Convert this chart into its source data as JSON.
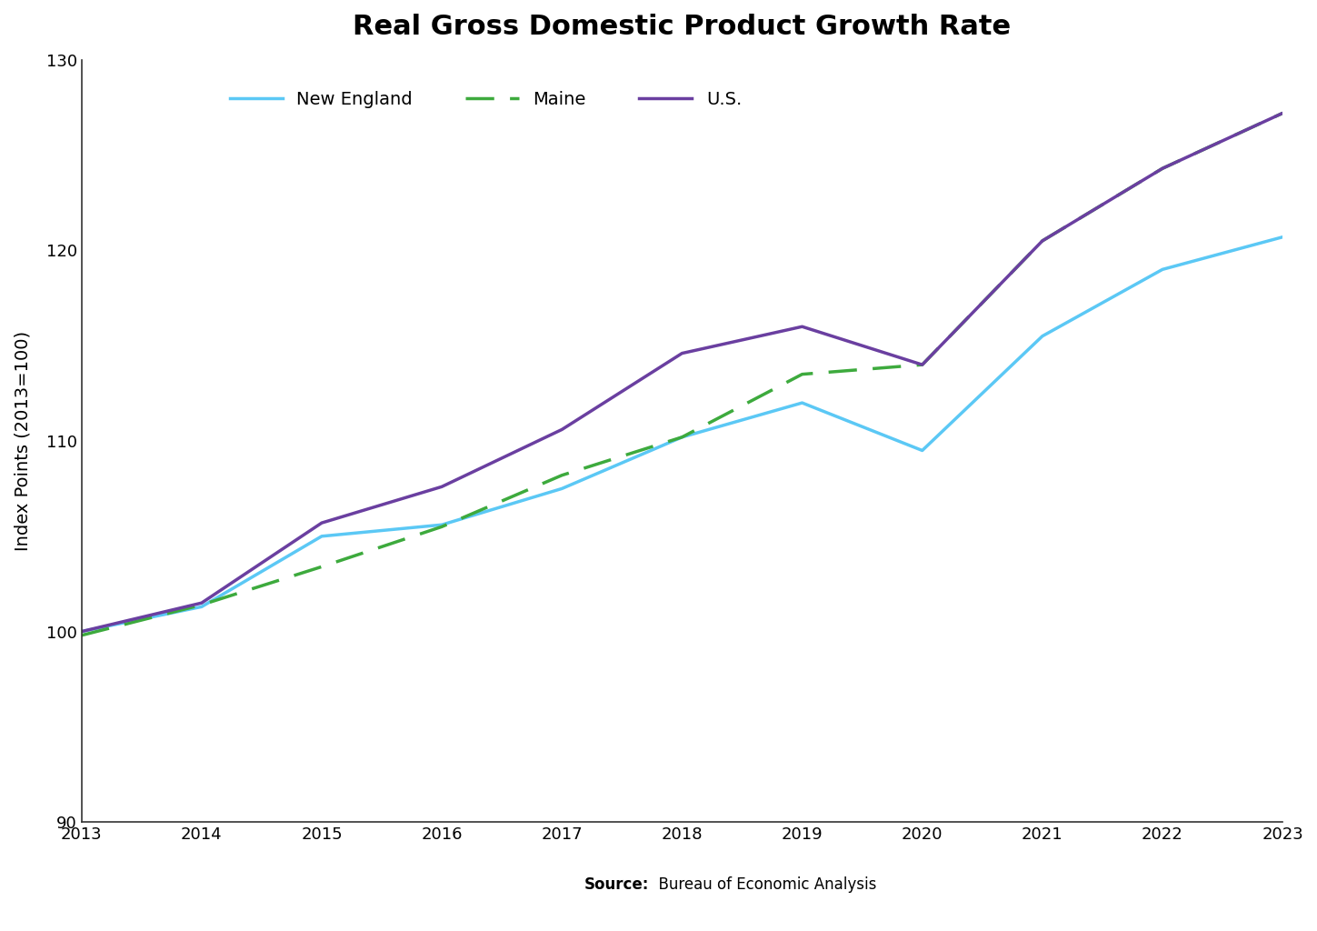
{
  "title": "Real Gross Domestic Product Growth Rate",
  "xlabel": "",
  "ylabel": "Index Points (2013=100)",
  "years": [
    2013,
    2014,
    2015,
    2016,
    2017,
    2018,
    2019,
    2020,
    2021,
    2022,
    2023
  ],
  "new_england": [
    100.0,
    101.3,
    105.0,
    105.6,
    107.5,
    110.2,
    112.0,
    109.5,
    115.5,
    119.0,
    120.7
  ],
  "maine": [
    99.8,
    101.4,
    103.4,
    105.5,
    108.2,
    110.2,
    113.5,
    114.0,
    120.5,
    124.3,
    127.2
  ],
  "us": [
    100.0,
    101.5,
    105.7,
    107.6,
    110.6,
    114.6,
    116.0,
    114.0,
    120.5,
    124.3,
    127.2
  ],
  "new_england_color": "#5BC8F5",
  "maine_color": "#3DAA3D",
  "us_color": "#6A3FA0",
  "ylim": [
    90,
    130
  ],
  "background_color": "#ffffff",
  "source_bold": "Source:",
  "source_rest": "  Bureau of Economic Analysis",
  "title_fontsize": 22,
  "label_fontsize": 14,
  "tick_fontsize": 13,
  "legend_fontsize": 14,
  "linewidth": 2.5
}
